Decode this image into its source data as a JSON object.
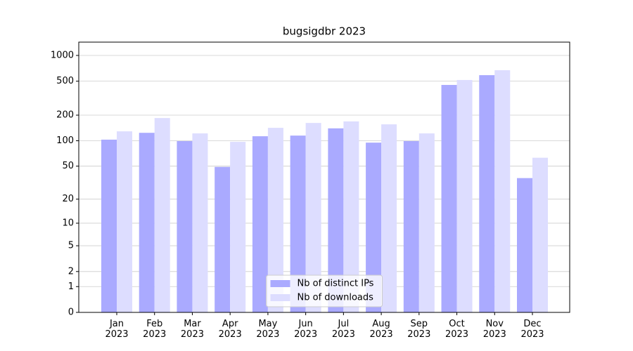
{
  "chart_data": {
    "type": "bar",
    "title": "bugsigdbr 2023",
    "categories": [
      "Jan\n2023",
      "Feb\n2023",
      "Mar\n2023",
      "Apr\n2023",
      "May\n2023",
      "Jun\n2023",
      "Jul\n2023",
      "Aug\n2023",
      "Sep\n2023",
      "Oct\n2023",
      "Nov\n2023",
      "Dec\n2023"
    ],
    "series": [
      {
        "name": "Nb of distinct IPs",
        "color": "#aaaaff",
        "values": [
          103,
          124,
          99,
          49,
          113,
          115,
          140,
          95,
          99,
          452,
          588,
          36
        ]
      },
      {
        "name": "Nb of downloads",
        "color": "#ddddff",
        "values": [
          129,
          185,
          122,
          97,
          142,
          162,
          169,
          156,
          122,
          516,
          672,
          63
        ]
      }
    ],
    "yscale": "log1p",
    "ylim": [
      0,
      1431
    ],
    "yticks": [
      0,
      1,
      2,
      5,
      10,
      20,
      50,
      100,
      200,
      500,
      1000
    ],
    "grid": true,
    "legend": "lower center"
  }
}
